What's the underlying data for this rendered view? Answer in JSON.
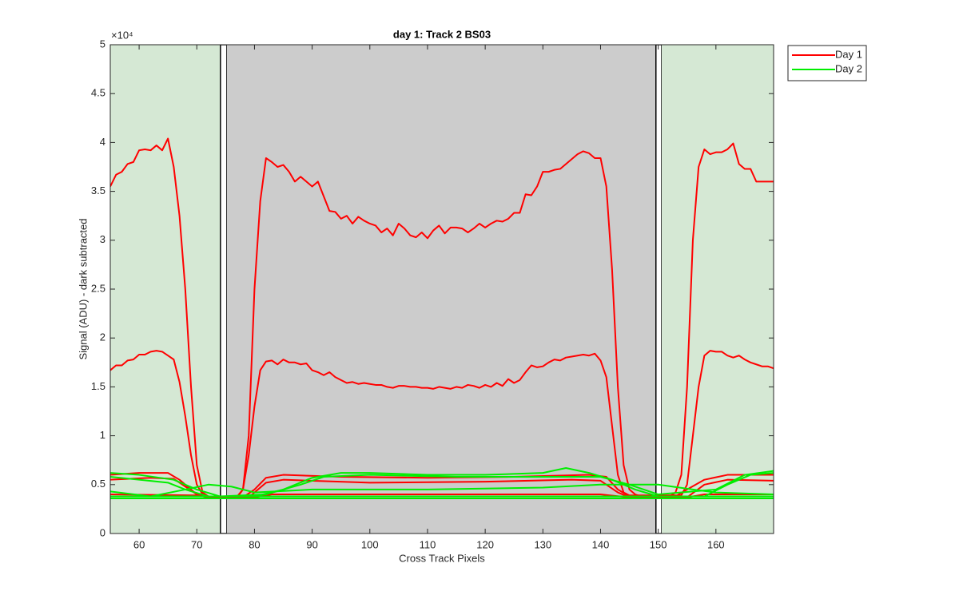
{
  "chart_data": {
    "type": "line",
    "title": "day 1: Track 2  BS03",
    "x_label": "Cross Track Pixels",
    "y_label": "Signal (ADU) - dark subtracted",
    "y_multiplier": "×10⁴",
    "xlim": [
      55,
      170
    ],
    "xticks": [
      60,
      70,
      80,
      90,
      100,
      110,
      120,
      130,
      140,
      150,
      160
    ],
    "ylim": [
      0,
      5
    ],
    "yticks": [
      0,
      0.5,
      1,
      1.5,
      2,
      2.5,
      3,
      3.5,
      4,
      4.5,
      5
    ],
    "legend_position": "outside-northeast",
    "regions": [
      {
        "x": [
          55,
          74.1
        ],
        "fill": "#d5e8d4"
      },
      {
        "x": [
          74.1,
          75.2
        ],
        "fill": "#ffffff",
        "stroke": "#000000"
      },
      {
        "x": [
          75.2,
          149.6
        ],
        "fill": "#cccccc"
      },
      {
        "x": [
          149.6,
          150.6
        ],
        "fill": "#ffffff",
        "stroke": "#000000"
      },
      {
        "x": [
          150.6,
          170
        ],
        "fill": "#d5e8d4"
      }
    ],
    "series": [
      {
        "name": "Day 1",
        "color": "#ff0000",
        "traces": [
          {
            "x": [
              55,
              56,
              57,
              58,
              59,
              60,
              61,
              62,
              63,
              64,
              65,
              66,
              67,
              68,
              69,
              70,
              71,
              72,
              77,
              78,
              79,
              80,
              81,
              82,
              83,
              84,
              85,
              86,
              87,
              88,
              89,
              90,
              91,
              92,
              93,
              94,
              95,
              96,
              97,
              98,
              99,
              100,
              101,
              102,
              103,
              104,
              105,
              106,
              107,
              108,
              109,
              110,
              111,
              112,
              113,
              114,
              115,
              116,
              117,
              118,
              119,
              120,
              121,
              122,
              123,
              124,
              125,
              126,
              127,
              128,
              129,
              130,
              131,
              132,
              133,
              134,
              135,
              136,
              137,
              138,
              139,
              140,
              141,
              142,
              143,
              144,
              145,
              146,
              147,
              152,
              153,
              154,
              155,
              156,
              157,
              158,
              159,
              160,
              161,
              162,
              163,
              164,
              165,
              166,
              167,
              168,
              169,
              170
            ],
            "values": [
              3.55,
              3.67,
              3.7,
              3.78,
              3.8,
              3.92,
              3.93,
              3.92,
              3.97,
              3.92,
              4.04,
              3.75,
              3.25,
              2.5,
              1.5,
              0.7,
              0.42,
              0.38,
              0.37,
              0.45,
              1.0,
              2.5,
              3.4,
              3.84,
              3.8,
              3.75,
              3.77,
              3.7,
              3.6,
              3.65,
              3.6,
              3.55,
              3.6,
              3.45,
              3.3,
              3.29,
              3.22,
              3.25,
              3.17,
              3.24,
              3.2,
              3.17,
              3.15,
              3.08,
              3.12,
              3.05,
              3.17,
              3.12,
              3.05,
              3.03,
              3.08,
              3.02,
              3.1,
              3.15,
              3.07,
              3.13,
              3.13,
              3.12,
              3.08,
              3.12,
              3.17,
              3.13,
              3.17,
              3.2,
              3.19,
              3.22,
              3.28,
              3.28,
              3.47,
              3.46,
              3.55,
              3.7,
              3.7,
              3.72,
              3.73,
              3.78,
              3.83,
              3.88,
              3.91,
              3.89,
              3.84,
              3.84,
              3.55,
              2.7,
              1.5,
              0.7,
              0.45,
              0.4,
              0.38,
              0.38,
              0.42,
              0.6,
              1.5,
              3.0,
              3.75,
              3.93,
              3.88,
              3.9,
              3.9,
              3.93,
              3.99,
              3.78,
              3.73,
              3.73,
              3.6,
              3.6,
              3.6,
              3.6
            ]
          },
          {
            "x": [
              55,
              56,
              57,
              58,
              59,
              60,
              61,
              62,
              63,
              64,
              65,
              66,
              67,
              68,
              69,
              70,
              71,
              72,
              77,
              78,
              79,
              80,
              81,
              82,
              83,
              84,
              85,
              86,
              87,
              88,
              89,
              90,
              91,
              92,
              93,
              94,
              95,
              96,
              97,
              98,
              99,
              100,
              101,
              102,
              103,
              104,
              105,
              106,
              107,
              108,
              109,
              110,
              111,
              112,
              113,
              114,
              115,
              116,
              117,
              118,
              119,
              120,
              121,
              122,
              123,
              124,
              125,
              126,
              127,
              128,
              129,
              130,
              131,
              132,
              133,
              134,
              135,
              136,
              137,
              138,
              139,
              140,
              141,
              142,
              143,
              144,
              145,
              154,
              155,
              156,
              157,
              158,
              159,
              160,
              161,
              162,
              163,
              164,
              165,
              166,
              167,
              168,
              169,
              170
            ],
            "values": [
              1.67,
              1.72,
              1.72,
              1.77,
              1.78,
              1.83,
              1.83,
              1.86,
              1.87,
              1.86,
              1.82,
              1.78,
              1.55,
              1.2,
              0.8,
              0.5,
              0.4,
              0.38,
              0.38,
              0.45,
              0.8,
              1.3,
              1.67,
              1.76,
              1.77,
              1.73,
              1.78,
              1.75,
              1.75,
              1.73,
              1.74,
              1.67,
              1.65,
              1.62,
              1.65,
              1.6,
              1.57,
              1.54,
              1.55,
              1.53,
              1.54,
              1.53,
              1.52,
              1.52,
              1.5,
              1.49,
              1.51,
              1.51,
              1.5,
              1.5,
              1.49,
              1.49,
              1.48,
              1.5,
              1.49,
              1.48,
              1.5,
              1.49,
              1.52,
              1.51,
              1.49,
              1.52,
              1.5,
              1.54,
              1.51,
              1.58,
              1.54,
              1.57,
              1.65,
              1.72,
              1.7,
              1.71,
              1.75,
              1.78,
              1.77,
              1.8,
              1.81,
              1.82,
              1.83,
              1.82,
              1.84,
              1.77,
              1.6,
              1.1,
              0.6,
              0.42,
              0.39,
              0.39,
              0.5,
              1.0,
              1.5,
              1.82,
              1.87,
              1.86,
              1.86,
              1.82,
              1.8,
              1.82,
              1.78,
              1.75,
              1.73,
              1.71,
              1.71,
              1.69
            ]
          },
          {
            "x": [
              55,
              60,
              65,
              67,
              70,
              72,
              78,
              80,
              82,
              85,
              95,
              110,
              125,
              138,
              141,
              143,
              145,
              153,
              155,
              158,
              162,
              170
            ],
            "values": [
              0.6,
              0.62,
              0.62,
              0.55,
              0.4,
              0.37,
              0.37,
              0.45,
              0.57,
              0.6,
              0.58,
              0.57,
              0.58,
              0.6,
              0.58,
              0.45,
              0.38,
              0.38,
              0.45,
              0.55,
              0.6,
              0.6
            ]
          },
          {
            "x": [
              55,
              62,
              66,
              70,
              72,
              79,
              82,
              85,
              100,
              120,
              135,
              140,
              143,
              145,
              155,
              158,
              162,
              170
            ],
            "values": [
              0.55,
              0.57,
              0.56,
              0.4,
              0.37,
              0.37,
              0.52,
              0.55,
              0.52,
              0.53,
              0.55,
              0.54,
              0.42,
              0.37,
              0.37,
              0.5,
              0.55,
              0.54
            ]
          },
          {
            "x": [
              55,
              70,
              72,
              80,
              83,
              140,
              145,
              155,
              158,
              170
            ],
            "values": [
              0.4,
              0.39,
              0.37,
              0.37,
              0.4,
              0.4,
              0.37,
              0.37,
              0.4,
              0.4
            ]
          },
          {
            "x": [
              55,
              170
            ],
            "values": [
              0.38,
              0.38
            ]
          }
        ]
      },
      {
        "name": "Day 2",
        "color": "#00ee00",
        "traces": [
          {
            "x": [
              55,
              60,
              65,
              68,
              72,
              80,
              85,
              90,
              95,
              100,
              110,
              120,
              130,
              134,
              138,
              142,
              146,
              150,
              158,
              162,
              166,
              170
            ],
            "values": [
              0.58,
              0.55,
              0.52,
              0.45,
              0.38,
              0.38,
              0.45,
              0.57,
              0.62,
              0.62,
              0.6,
              0.6,
              0.62,
              0.67,
              0.62,
              0.55,
              0.45,
              0.38,
              0.38,
              0.5,
              0.6,
              0.62
            ]
          },
          {
            "x": [
              55,
              60,
              66,
              70,
              74,
              82,
              88,
              92,
              100,
              115,
              130,
              140,
              145,
              150,
              160,
              165,
              170
            ],
            "values": [
              0.62,
              0.6,
              0.55,
              0.45,
              0.38,
              0.4,
              0.5,
              0.58,
              0.6,
              0.58,
              0.58,
              0.58,
              0.5,
              0.4,
              0.45,
              0.6,
              0.64
            ]
          },
          {
            "x": [
              55,
              62,
              68,
              72,
              76,
              80,
              90,
              110,
              130,
              140,
              150,
              156,
              160,
              170
            ],
            "values": [
              0.43,
              0.38,
              0.45,
              0.5,
              0.48,
              0.42,
              0.45,
              0.45,
              0.47,
              0.5,
              0.5,
              0.45,
              0.42,
              0.4
            ]
          },
          {
            "x": [
              55,
              170
            ],
            "values": [
              0.36,
              0.36
            ]
          },
          {
            "x": [
              55,
              100,
              170
            ],
            "values": [
              0.38,
              0.38,
              0.38
            ]
          }
        ]
      }
    ]
  }
}
